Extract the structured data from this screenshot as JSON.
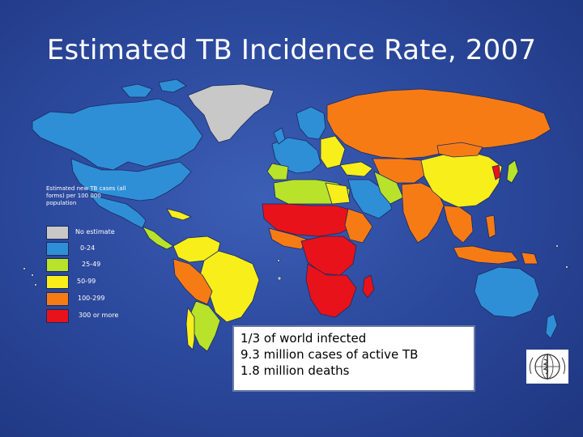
{
  "title": "Estimated TB Incidence Rate, 2007",
  "legend": {
    "caption": "Estimated new TB cases (all forms) per 100 000 population",
    "items": [
      {
        "label": "No estimate",
        "color": "#c8c8c8"
      },
      {
        "label": "0-24",
        "color": "#2f8fd6"
      },
      {
        "label": "25-49",
        "color": "#b9e22a"
      },
      {
        "label": "50-99",
        "color": "#f8ee1a"
      },
      {
        "label": "100-299",
        "color": "#f77b15"
      },
      {
        "label": "300 or more",
        "color": "#e8121a"
      }
    ]
  },
  "info": {
    "lines": [
      "1/3 of world infected",
      "9.3 million cases of active TB",
      "1.8 million deaths"
    ]
  },
  "colors": {
    "background": "#2c4a9e",
    "ocean_border": "#1a2a60"
  },
  "logo": "who-emblem-icon"
}
